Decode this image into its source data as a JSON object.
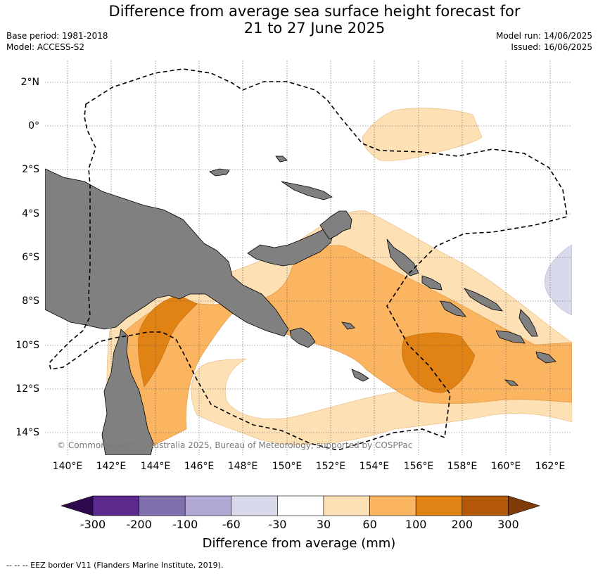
{
  "header": {
    "title_line1": "Difference from average sea surface height forecast for",
    "title_line2": "21 to 27 June 2025",
    "base_period": "Base period: 1981-2018",
    "model": "Model: ACCESS-S2",
    "model_run": "Model run: 14/06/2025",
    "issued": "Issued: 16/06/2025"
  },
  "map": {
    "lat_labels": [
      "2°N",
      "0°",
      "2°S",
      "4°S",
      "6°S",
      "8°S",
      "10°S",
      "12°S",
      "14°S"
    ],
    "lon_labels": [
      "140°E",
      "142°E",
      "144°E",
      "146°E",
      "148°E",
      "150°E",
      "152°E",
      "154°E",
      "156°E",
      "158°E",
      "160°E",
      "162°E"
    ],
    "copyright": "© Commonwealth of Australia 2025, Bureau of Meteorology, supported by COSPPac",
    "land_color": "#808080",
    "eez_line": "dashed"
  },
  "colorbar": {
    "title": "Difference from average (mm)",
    "tick_labels": [
      "-300",
      "-200",
      "-100",
      "-60",
      "-30",
      "30",
      "60",
      "100",
      "200",
      "300"
    ],
    "colors": [
      "#2d0a4e",
      "#5b2a8c",
      "#8170ae",
      "#b1a8d4",
      "#d8d9ea",
      "#ffffff",
      "#fde0b4",
      "#fbb45f",
      "#e08214",
      "#b35806",
      "#7f3b08"
    ]
  },
  "footer": {
    "legend_note": "--  --  -- EEZ border V11 (Flanders Marine Institute, 2019)."
  }
}
